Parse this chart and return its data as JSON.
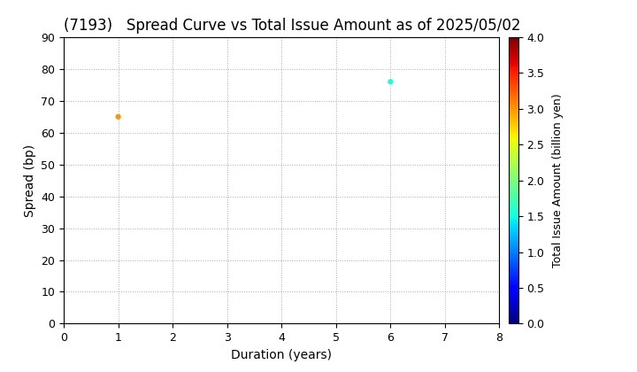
{
  "title": "(7193)   Spread Curve vs Total Issue Amount as of 2025/05/02",
  "xlabel": "Duration (years)",
  "ylabel": "Spread (bp)",
  "colorbar_label": "Total Issue Amount (billion yen)",
  "xlim": [
    0,
    8
  ],
  "ylim": [
    0,
    90
  ],
  "xticks": [
    0,
    1,
    2,
    3,
    4,
    5,
    6,
    7,
    8
  ],
  "yticks": [
    0,
    10,
    20,
    30,
    40,
    50,
    60,
    70,
    80,
    90
  ],
  "colorbar_min": 0.0,
  "colorbar_max": 4.0,
  "colorbar_ticks": [
    0.0,
    0.5,
    1.0,
    1.5,
    2.0,
    2.5,
    3.0,
    3.5,
    4.0
  ],
  "points": [
    {
      "duration": 1.0,
      "spread": 65,
      "amount": 3.0
    },
    {
      "duration": 6.0,
      "spread": 76,
      "amount": 1.5
    }
  ],
  "marker_size": 20,
  "background_color": "#ffffff",
  "grid_color": "#aaaaaa",
  "title_fontsize": 12,
  "axis_fontsize": 10,
  "colorbar_fontsize": 9,
  "tick_fontsize": 9
}
